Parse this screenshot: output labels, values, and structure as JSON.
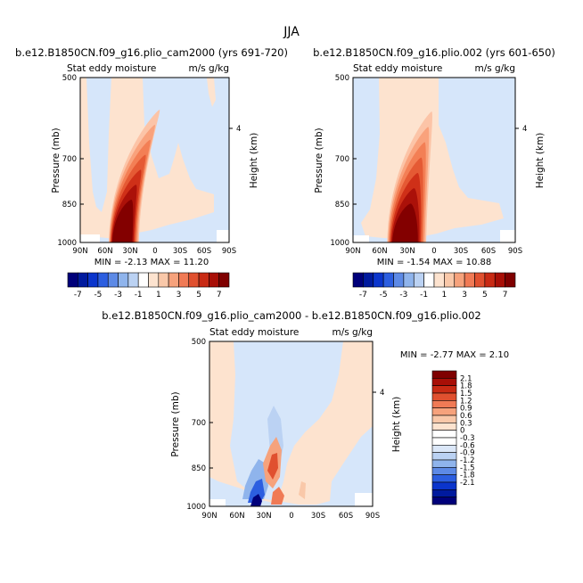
{
  "page_title": "JJA",
  "colors": {
    "fill_blue": "#d6e6fa",
    "fill_peach": "#fde3cf",
    "shade_red": [
      "#fcc4a7",
      "#f9a27c",
      "#f37f55",
      "#e55a34",
      "#cf3018",
      "#ab1109",
      "#830000"
    ],
    "neg_blue": [
      "#bbd2f3",
      "#8fb4ec",
      "#5d8ae6",
      "#2c5ee0",
      "#0b35cc",
      "#001a9e",
      "#00007a"
    ],
    "pos_red": [
      "#f9c8a9",
      "#f6a27c",
      "#f07a55",
      "#e0502f",
      "#c82a14",
      "#a80f07",
      "#7f0000"
    ]
  },
  "chart_data": [
    {
      "type": "heatmap",
      "title": "b.e12.B1850CN.f09_g16.plio_cam2000 (yrs 691-720)",
      "left_label": "Stat eddy moisture",
      "right_label": "m/s g/kg",
      "ylabel": "Pressure (mb)",
      "ylabel_right": "Height (km)",
      "y_ticks": [
        "500",
        "700",
        "850",
        "1000"
      ],
      "y_ticks_right": [
        "4"
      ],
      "x_ticks": [
        "90N",
        "60N",
        "30N",
        "0",
        "30S",
        "60S",
        "90S"
      ],
      "stats": "MIN = -2.13 MAX = 11.20",
      "peak": 11.2
    },
    {
      "type": "heatmap",
      "title": "b.e12.B1850CN.f09_g16.plio.002 (yrs 601-650)",
      "left_label": "Stat eddy moisture",
      "right_label": "m/s g/kg",
      "ylabel": "Pressure (mb)",
      "ylabel_right": "Height (km)",
      "y_ticks": [
        "500",
        "700",
        "850",
        "1000"
      ],
      "y_ticks_right": [
        "4"
      ],
      "x_ticks": [
        "90N",
        "60N",
        "30N",
        "0",
        "30S",
        "60S",
        "90S"
      ],
      "stats": "MIN = -1.54 MAX = 10.88",
      "peak": 10.88
    },
    {
      "type": "heatmap",
      "title": "b.e12.B1850CN.f09_g16.plio_cam2000 - b.e12.B1850CN.f09_g16.plio.002",
      "left_label": "Stat eddy moisture",
      "right_label": "m/s g/kg",
      "ylabel": "Pressure (mb)",
      "ylabel_right": "Height (km)",
      "y_ticks": [
        "500",
        "700",
        "850",
        "1000"
      ],
      "y_ticks_right": [
        "4"
      ],
      "x_ticks": [
        "90N",
        "60N",
        "30N",
        "0",
        "30S",
        "60S",
        "90S"
      ],
      "stats": "MIN = -2.77 MAX = 2.10"
    }
  ],
  "colorbar_top": {
    "labels": [
      "-7",
      "-5",
      "-3",
      "-1",
      "1",
      "3",
      "5",
      "7"
    ]
  },
  "colorbar_diff": {
    "labels": [
      "2.1",
      "1.8",
      "1.5",
      "1.2",
      "0.9",
      "0.6",
      "0.3",
      "0",
      "-0.3",
      "-0.6",
      "-0.9",
      "-1.2",
      "-1.5",
      "-1.8",
      "-2.1"
    ]
  }
}
